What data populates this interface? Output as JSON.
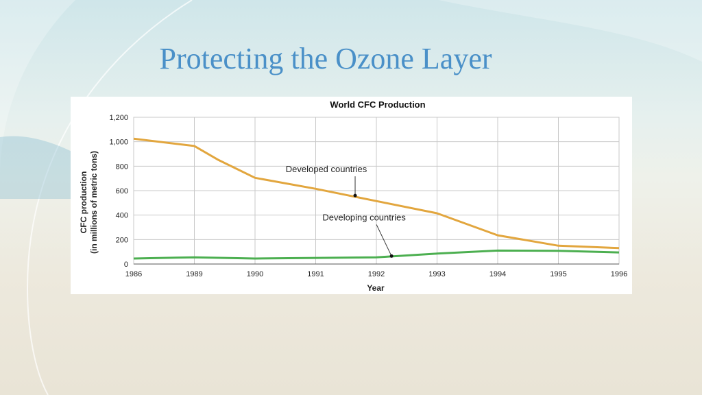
{
  "slide": {
    "title": "Protecting the Ozone Layer"
  },
  "colors": {
    "title": "#4a90c8",
    "developed": "#e2a63e",
    "developing": "#4caf50",
    "grid": "#c8c8c8"
  },
  "chart_data": {
    "type": "line",
    "title": "World CFC Production",
    "xlabel": "Year",
    "ylabel": [
      "CFC production",
      "(in millions of metric tons)"
    ],
    "categories": [
      "1986",
      "1989",
      "1990",
      "1991",
      "1992",
      "1993",
      "1994",
      "1995",
      "1996"
    ],
    "y_ticks": [
      "0",
      "200",
      "400",
      "600",
      "800",
      "1,000",
      "1,200"
    ],
    "ylim": [
      0,
      1200
    ],
    "grid": true,
    "series": [
      {
        "name": "Developed countries",
        "color": "#e2a63e",
        "points": [
          [
            0,
            1025
          ],
          [
            1,
            965
          ],
          [
            1.4,
            850
          ],
          [
            2,
            705
          ],
          [
            3,
            615
          ],
          [
            4,
            515
          ],
          [
            5,
            415
          ],
          [
            6,
            235
          ],
          [
            7,
            150
          ],
          [
            8,
            130
          ]
        ]
      },
      {
        "name": "Developing countries",
        "color": "#4caf50",
        "points": [
          [
            0,
            45
          ],
          [
            1,
            55
          ],
          [
            2,
            45
          ],
          [
            3,
            50
          ],
          [
            4,
            55
          ],
          [
            5,
            85
          ],
          [
            6,
            110
          ],
          [
            7,
            108
          ],
          [
            8,
            95
          ]
        ]
      }
    ],
    "annotations": [
      {
        "text": "Developed countries",
        "series": 0,
        "at": [
          3.65,
          560
        ]
      },
      {
        "text": "Developing countries",
        "series": 1,
        "at": [
          4.25,
          65
        ]
      }
    ]
  }
}
